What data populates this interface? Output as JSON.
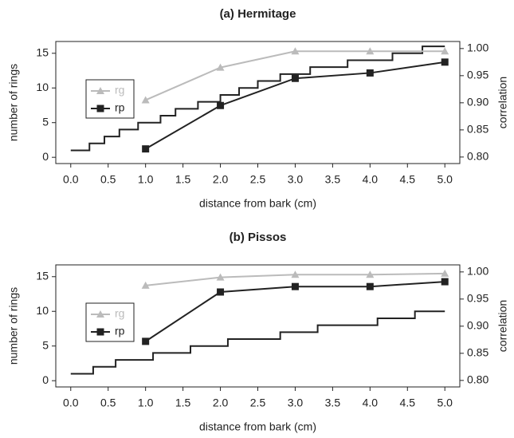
{
  "chart_data": [
    {
      "type": "line",
      "title": "(a) Hermitage",
      "xlabel": "distance from bark (cm)",
      "ylabel": "number of rings",
      "y2label": "correlation",
      "xlim": [
        -0.2,
        5.2
      ],
      "xticks": [
        {
          "value": 0,
          "label": "0.0"
        },
        {
          "value": 0.5,
          "label": "0.5"
        },
        {
          "value": 1,
          "label": "1.0"
        },
        {
          "value": 1.5,
          "label": "1.5"
        },
        {
          "value": 2,
          "label": "2.0"
        },
        {
          "value": 2.5,
          "label": "2.5"
        },
        {
          "value": 3,
          "label": "3.0"
        },
        {
          "value": 3.5,
          "label": "3.5"
        },
        {
          "value": 4,
          "label": "4.0"
        },
        {
          "value": 4.5,
          "label": "4.5"
        },
        {
          "value": 5,
          "label": "5.0"
        }
      ],
      "ylim": [
        -0.9,
        16.7
      ],
      "yticks": [
        0,
        5,
        10,
        15
      ],
      "y2lim": [
        0.788,
        1.013
      ],
      "y2ticks": [
        {
          "value": 0.8,
          "label": "0.80"
        },
        {
          "value": 0.85,
          "label": "0.85"
        },
        {
          "value": 0.9,
          "label": "0.90"
        },
        {
          "value": 0.95,
          "label": "0.95"
        },
        {
          "value": 1,
          "label": "1.00"
        }
      ],
      "series": [
        {
          "color": "#222222",
          "step": true,
          "x": [
            0,
            0.25,
            0.45,
            0.65,
            0.9,
            1.2,
            1.4,
            1.7,
            2.0,
            2.25,
            2.5,
            2.8,
            3.2,
            3.7,
            4.3,
            4.7
          ],
          "values": [
            1,
            2,
            3,
            4,
            5,
            6,
            7,
            8,
            9,
            10,
            11,
            12,
            13,
            14,
            15,
            16
          ]
        },
        {
          "name": "rg",
          "color": "#bbbbbb",
          "marker": "triangle",
          "axis": "y2",
          "x": [
            1,
            2,
            3,
            4,
            5
          ],
          "values": [
            0.905,
            0.965,
            0.995,
            0.995,
            0.995
          ]
        },
        {
          "name": "rp",
          "color": "#222222",
          "marker": "square",
          "axis": "y2",
          "x": [
            1,
            2,
            3,
            4,
            5
          ],
          "values": [
            0.815,
            0.895,
            0.945,
            0.955,
            0.975
          ]
        }
      ]
    },
    {
      "type": "line",
      "title": "(b) Pissos",
      "xlabel": "distance from bark (cm)",
      "ylabel": "number of rings",
      "y2label": "correlation",
      "xlim": [
        -0.2,
        5.2
      ],
      "xticks": [
        {
          "value": 0,
          "label": "0.0"
        },
        {
          "value": 0.5,
          "label": "0.5"
        },
        {
          "value": 1,
          "label": "1.0"
        },
        {
          "value": 1.5,
          "label": "1.5"
        },
        {
          "value": 2,
          "label": "2.0"
        },
        {
          "value": 2.5,
          "label": "2.5"
        },
        {
          "value": 3,
          "label": "3.0"
        },
        {
          "value": 3.5,
          "label": "3.5"
        },
        {
          "value": 4,
          "label": "4.0"
        },
        {
          "value": 4.5,
          "label": "4.5"
        },
        {
          "value": 5,
          "label": "5.0"
        }
      ],
      "ylim": [
        -0.9,
        16.7
      ],
      "yticks": [
        0,
        5,
        10,
        15
      ],
      "y2lim": [
        0.788,
        1.013
      ],
      "y2ticks": [
        {
          "value": 0.8,
          "label": "0.80"
        },
        {
          "value": 0.85,
          "label": "0.85"
        },
        {
          "value": 0.9,
          "label": "0.90"
        },
        {
          "value": 0.95,
          "label": "0.95"
        },
        {
          "value": 1,
          "label": "1.00"
        }
      ],
      "series": [
        {
          "color": "#222222",
          "step": true,
          "x": [
            0,
            0.3,
            0.6,
            1.1,
            1.6,
            2.1,
            2.8,
            3.3,
            4.1,
            4.6
          ],
          "values": [
            1,
            2,
            3,
            4,
            5,
            6,
            7,
            8,
            9,
            10
          ]
        },
        {
          "name": "rg",
          "color": "#bbbbbb",
          "marker": "triangle",
          "axis": "y2",
          "x": [
            1,
            2,
            3,
            4,
            5
          ],
          "values": [
            0.975,
            0.99,
            0.995,
            0.995,
            0.997
          ]
        },
        {
          "name": "rp",
          "color": "#222222",
          "marker": "square",
          "axis": "y2",
          "x": [
            1,
            2,
            3,
            4,
            5
          ],
          "values": [
            0.872,
            0.963,
            0.973,
            0.973,
            0.982
          ]
        }
      ]
    }
  ]
}
